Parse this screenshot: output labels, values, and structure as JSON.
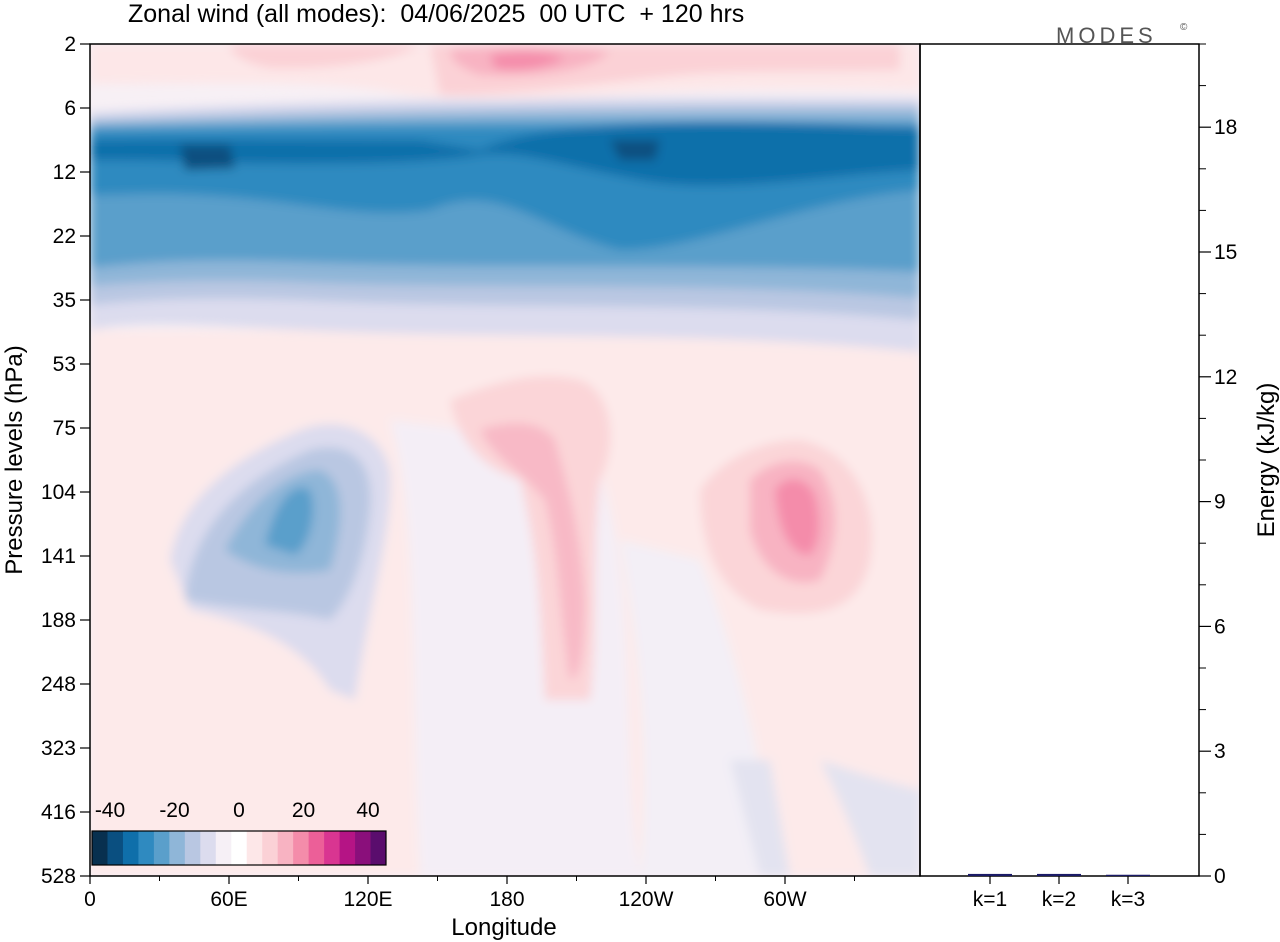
{
  "chart_data": {
    "type": "heatmap",
    "title": "Zonal wind (all modes):  04/06/2025  00 UTC  + 120 hrs",
    "logo": "MODES",
    "logo_mark": "©",
    "xlabel": "Longitude",
    "ylabel": "Pressure levels (hPa)",
    "x_ticks": [
      "0",
      "60E",
      "120E",
      "180",
      "120W",
      "60W"
    ],
    "y_ticks": [
      "2",
      "6",
      "12",
      "22",
      "35",
      "53",
      "75",
      "104",
      "141",
      "188",
      "248",
      "323",
      "416",
      "528"
    ],
    "colorbar": {
      "tick_labels": [
        "-40",
        "-20",
        "0",
        "20",
        "40"
      ],
      "colors": [
        "#08304f",
        "#0a4f80",
        "#0f6faa",
        "#2f8ac0",
        "#5a9fcb",
        "#8fb6d8",
        "#b9c7e2",
        "#dcdcee",
        "#f6f0f6",
        "#ffffff",
        "#fde7e8",
        "#fbd1d6",
        "#f8b3c2",
        "#f48caa",
        "#ec5f98",
        "#d93591",
        "#b51485",
        "#8a0f7b",
        "#5a0d6d"
      ]
    },
    "right_panel": {
      "ylabel": "Energy (kJ/kg)",
      "y_ticks": [
        "0",
        "3",
        "6",
        "9",
        "12",
        "15",
        "18"
      ],
      "ylim": [
        0,
        20
      ],
      "categories": [
        "k=1",
        "k=2",
        "k=3"
      ],
      "values": [
        0.05,
        0.05,
        0.03
      ]
    }
  }
}
